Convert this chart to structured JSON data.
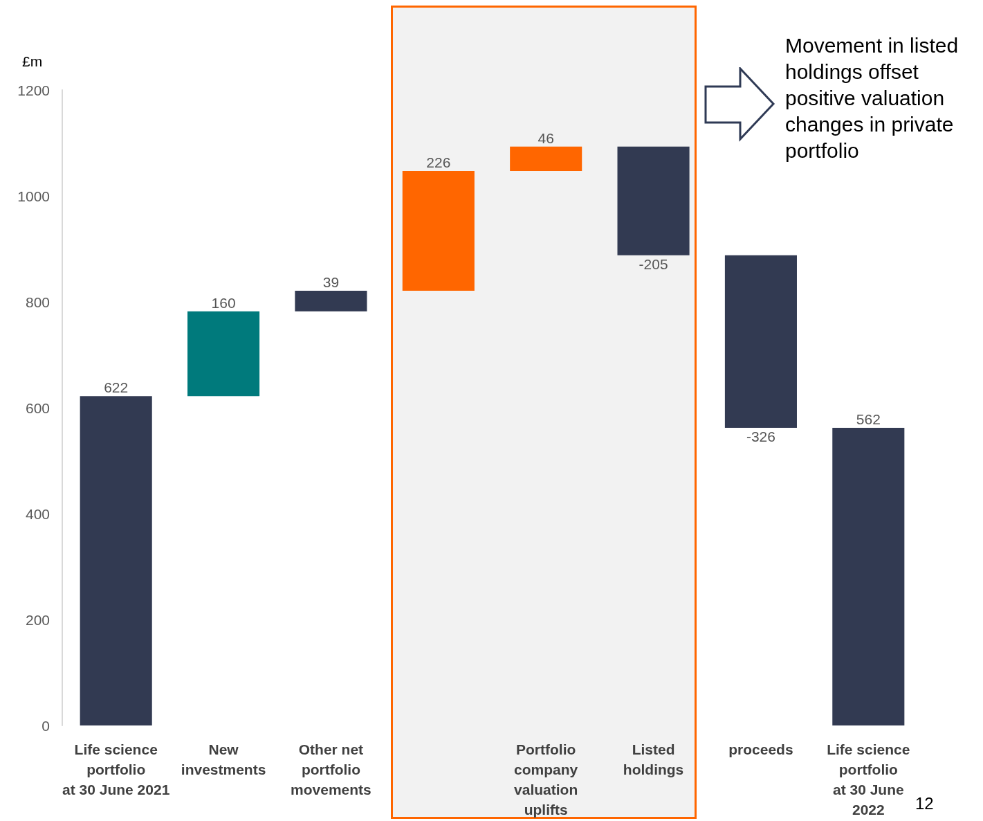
{
  "chart_data": {
    "type": "bar",
    "ylabel": "£m",
    "categories": [
      "Life science\nportfolio\nat 30 June 2021",
      "New\ninvestments",
      "Other net\nportfolio\nmovements",
      null,
      "Portfolio\ncompany\nvaluation\nuplifts",
      "Listed\nholdings",
      "proceeds",
      "Life science\nportfolio\nat 30 June\n2022"
    ],
    "values": [
      622,
      160,
      39,
      226,
      46,
      -205,
      -326,
      562
    ],
    "base": [
      0,
      622,
      782,
      821,
      1047,
      1093,
      888,
      0
    ],
    "colors": [
      "#323a52",
      "#007a7c",
      "#323a52",
      "#ff6600",
      "#ff6600",
      "#323a52",
      "#323a52",
      "#323a52"
    ],
    "ylim": [
      0,
      1200
    ],
    "yticks": [
      0,
      200,
      400,
      600,
      800,
      1000,
      1200
    ],
    "data_labels": true,
    "annotations": [
      "Movement in listed holdings offset positive valuation changes in private portfolio",
      "12"
    ]
  }
}
